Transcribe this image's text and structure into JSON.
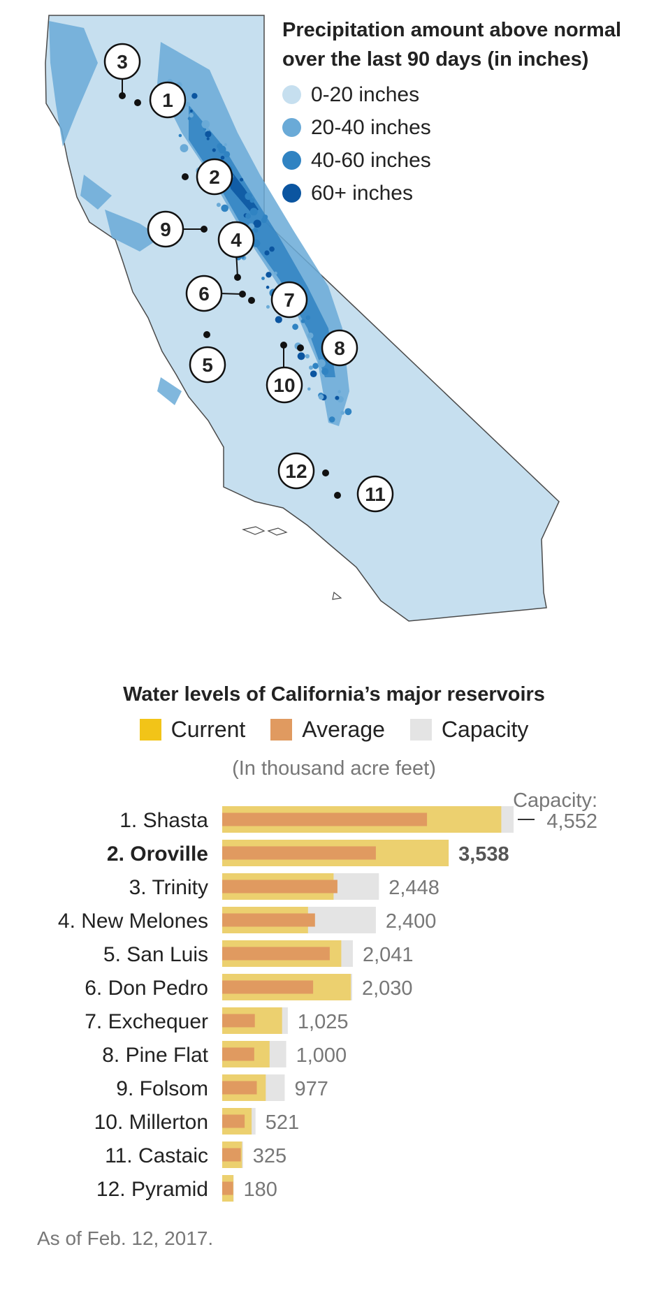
{
  "map": {
    "legend_title_line1": "Precipitation amount above normal",
    "legend_title_line2": "over the last 90 days (in inches)",
    "legend": [
      {
        "label": "0-20 inches",
        "color": "#c6dfef"
      },
      {
        "label": "20-40 inches",
        "color": "#6aaad7"
      },
      {
        "label": "40-60 inches",
        "color": "#3083c2"
      },
      {
        "label": "60+ inches",
        "color": "#0b55a0"
      }
    ],
    "markers": [
      {
        "number": "1"
      },
      {
        "number": "2"
      },
      {
        "number": "3"
      },
      {
        "number": "4"
      },
      {
        "number": "5"
      },
      {
        "number": "6"
      },
      {
        "number": "7"
      },
      {
        "number": "8"
      },
      {
        "number": "9"
      },
      {
        "number": "10"
      },
      {
        "number": "11"
      },
      {
        "number": "12"
      }
    ]
  },
  "chart_data": {
    "type": "bar",
    "title": "Water levels of California’s major reservoirs",
    "subtitle": "(In thousand acre feet)",
    "legend": [
      {
        "label": "Current",
        "color": "#f2c418"
      },
      {
        "label": "Average",
        "color": "#e09a60"
      },
      {
        "label": "Capacity",
        "color": "#e4e4e4"
      }
    ],
    "capacity_note": "Capacity:",
    "categories": [
      "1. Shasta",
      "2. Oroville",
      "3. Trinity",
      "4. New Melones",
      "5. San Luis",
      "6. Don Pedro",
      "7. Exchequer",
      "8. Pine Flat",
      "9. Folsom",
      "10. Millerton",
      "11. Castaic",
      "12. Pyramid"
    ],
    "highlight": "2. Oroville",
    "capacity_labels": [
      "4,552",
      "3,538",
      "2,448",
      "2,400",
      "2,041",
      "2,030",
      "1,025",
      "1,000",
      "977",
      "521",
      "325",
      "180"
    ],
    "series": [
      {
        "name": "Capacity",
        "values": [
          4552,
          3538,
          2448,
          2400,
          2041,
          2030,
          1025,
          1000,
          977,
          521,
          325,
          180
        ]
      },
      {
        "name": "Current",
        "values": [
          4360,
          3538,
          1740,
          1340,
          1860,
          2010,
          935,
          740,
          680,
          460,
          310,
          175
        ]
      },
      {
        "name": "Average",
        "values": [
          3200,
          2400,
          1800,
          1450,
          1680,
          1420,
          510,
          500,
          540,
          350,
          290,
          170
        ]
      }
    ],
    "xlim": [
      0,
      4552
    ]
  },
  "footnote": "As of  Feb. 12, 2017."
}
